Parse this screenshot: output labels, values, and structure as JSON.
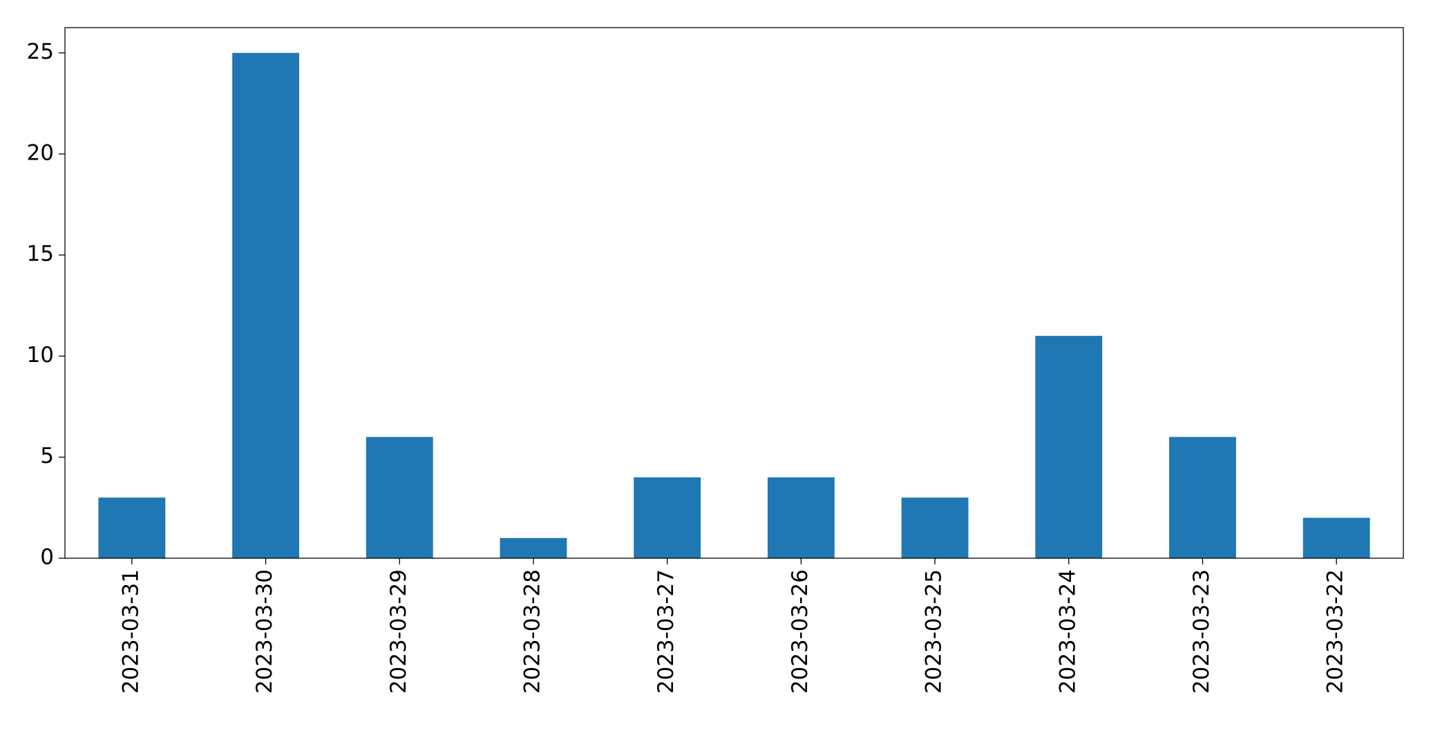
{
  "chart_data": {
    "type": "bar",
    "categories": [
      "2023-03-31",
      "2023-03-30",
      "2023-03-29",
      "2023-03-28",
      "2023-03-27",
      "2023-03-26",
      "2023-03-25",
      "2023-03-24",
      "2023-03-23",
      "2023-03-22"
    ],
    "values": [
      3,
      25,
      6,
      1,
      4,
      4,
      3,
      11,
      6,
      2
    ],
    "color": "#1f77b4",
    "ylim": [
      0,
      26.25
    ],
    "yticks": [
      0,
      5,
      10,
      15,
      20,
      25
    ],
    "grid": false
  }
}
